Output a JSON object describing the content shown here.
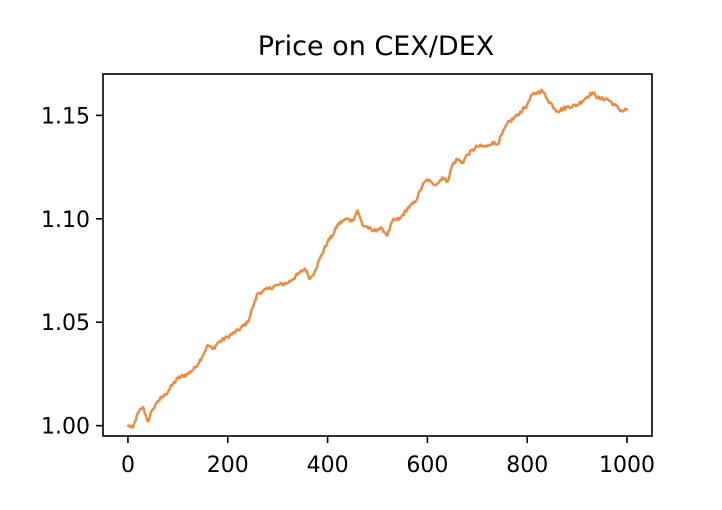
{
  "chart_data": {
    "type": "line",
    "title": "Price on CEX/DEX",
    "xlabel": "",
    "ylabel": "",
    "xlim": [
      -50,
      1050
    ],
    "ylim": [
      0.995,
      1.17
    ],
    "x_ticks": [
      0,
      200,
      400,
      600,
      800,
      1000
    ],
    "x_tick_labels": [
      "0",
      "200",
      "400",
      "600",
      "800",
      "1000"
    ],
    "y_ticks": [
      1.0,
      1.05,
      1.1,
      1.15
    ],
    "y_tick_labels": [
      "1.00",
      "1.05",
      "1.10",
      "1.15"
    ],
    "grid": false,
    "series": [
      {
        "color": "#ee8a3e",
        "x": [
          0,
          10,
          20,
          30,
          40,
          50,
          60,
          75,
          90,
          100,
          120,
          135,
          150,
          160,
          170,
          180,
          200,
          220,
          240,
          250,
          260,
          270,
          280,
          300,
          320,
          340,
          355,
          365,
          375,
          385,
          400,
          410,
          420,
          430,
          440,
          450,
          460,
          470,
          480,
          490,
          500,
          510,
          520,
          530,
          545,
          560,
          575,
          590,
          600,
          610,
          620,
          630,
          640,
          650,
          660,
          670,
          680,
          700,
          720,
          730,
          740,
          760,
          780,
          800,
          810,
          820,
          830,
          840,
          860,
          880,
          900,
          920,
          930,
          945,
          960,
          975,
          990,
          1000
        ],
        "y": [
          1.0,
          0.999,
          1.006,
          1.009,
          1.002,
          1.008,
          1.012,
          1.015,
          1.02,
          1.023,
          1.025,
          1.028,
          1.034,
          1.039,
          1.037,
          1.04,
          1.043,
          1.046,
          1.05,
          1.057,
          1.064,
          1.065,
          1.066,
          1.068,
          1.069,
          1.073,
          1.076,
          1.071,
          1.075,
          1.081,
          1.089,
          1.092,
          1.097,
          1.099,
          1.1,
          1.099,
          1.104,
          1.097,
          1.096,
          1.094,
          1.095,
          1.095,
          1.092,
          1.099,
          1.1,
          1.105,
          1.108,
          1.116,
          1.119,
          1.117,
          1.117,
          1.12,
          1.118,
          1.126,
          1.129,
          1.127,
          1.131,
          1.135,
          1.135,
          1.137,
          1.136,
          1.146,
          1.15,
          1.155,
          1.16,
          1.161,
          1.162,
          1.158,
          1.152,
          1.154,
          1.155,
          1.159,
          1.161,
          1.158,
          1.158,
          1.155,
          1.152,
          1.153
        ]
      }
    ]
  }
}
